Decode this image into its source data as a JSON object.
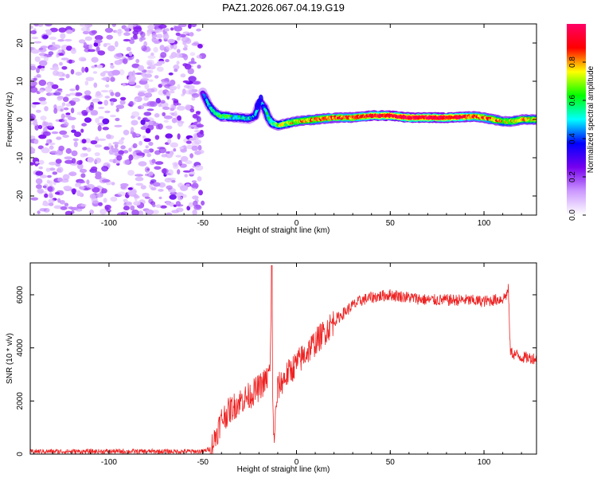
{
  "title": "PAZ1.2026.067.04.19.G19",
  "chart_data": [
    {
      "type": "heatmap",
      "name": "spectrogram",
      "xlabel": "Height of straight line (km)",
      "ylabel": "Frequency (Hz)",
      "xlim": [
        -142,
        128
      ],
      "ylim": [
        -25,
        25
      ],
      "xticks": [
        -100,
        -50,
        0,
        50,
        100
      ],
      "yticks": [
        -20,
        -10,
        0,
        10,
        20
      ],
      "colorbar": {
        "label": "Normalized spectral amplitude",
        "range": [
          0,
          1
        ],
        "ticks": [
          0.0,
          0.2,
          0.4,
          0.6,
          0.8
        ],
        "colors": [
          "#ffffff",
          "#cc99ff",
          "#7700ee",
          "#0000ff",
          "#00ffff",
          "#00ff00",
          "#ffff00",
          "#ff0000",
          "#ff0066"
        ]
      },
      "noise_region_x": [
        -142,
        -50
      ],
      "signal_ridge": {
        "x": [
          -50,
          -47,
          -45,
          -42,
          -40,
          -37,
          -35,
          -30,
          -25,
          -22,
          -20,
          -19,
          -17,
          -15,
          -13,
          -10,
          -5,
          0,
          10,
          20,
          30,
          40,
          50,
          60,
          70,
          80,
          90,
          95,
          100,
          105,
          110,
          115,
          120,
          128
        ],
        "freq_hz": [
          7,
          4,
          2.5,
          1.2,
          0.8,
          0.8,
          0.6,
          0.5,
          0.2,
          1.0,
          4.0,
          4.5,
          3.0,
          0.5,
          -1.0,
          -1.5,
          -1.0,
          -0.5,
          0.0,
          0.5,
          0.5,
          1.0,
          1.0,
          0.5,
          0.5,
          0.5,
          0.7,
          0.8,
          0.5,
          0.0,
          -0.5,
          -0.5,
          0.0,
          0.0
        ],
        "amplitude": [
          0.35,
          0.45,
          0.5,
          0.55,
          0.6,
          0.6,
          0.55,
          0.5,
          0.5,
          0.45,
          0.4,
          0.4,
          0.45,
          0.55,
          0.6,
          0.65,
          0.7,
          0.75,
          0.8,
          0.85,
          0.85,
          0.9,
          0.95,
          0.95,
          0.95,
          0.95,
          0.9,
          0.85,
          0.85,
          0.8,
          0.75,
          0.75,
          0.75,
          0.75
        ]
      }
    },
    {
      "type": "line",
      "name": "snr",
      "xlabel": "Height of straight line (km)",
      "ylabel": "SNR (10 * v/v)",
      "xlim": [
        -142,
        128
      ],
      "ylim": [
        0,
        7200
      ],
      "xticks": [
        -100,
        -50,
        0,
        50,
        100
      ],
      "yticks": [
        0,
        2000,
        4000,
        6000
      ],
      "color": "#ee2222",
      "envelope": {
        "x": [
          -142,
          -50,
          -46,
          -44,
          -42,
          -40,
          -35,
          -30,
          -25,
          -20,
          -16,
          -14,
          -13.2,
          -12.8,
          -12,
          -11,
          -10,
          -5,
          0,
          5,
          10,
          15,
          20,
          25,
          30,
          35,
          40,
          50,
          60,
          70,
          80,
          90,
          100,
          105,
          110,
          112,
          113,
          114,
          115,
          120,
          128
        ],
        "snr": [
          100,
          100,
          200,
          500,
          900,
          1300,
          1700,
          2000,
          2200,
          2500,
          2800,
          3200,
          7100,
          2000,
          600,
          1500,
          2500,
          3000,
          3400,
          3800,
          4200,
          4600,
          5000,
          5300,
          5600,
          5800,
          5900,
          6000,
          5900,
          5800,
          5800,
          5800,
          5750,
          5800,
          5850,
          6000,
          6200,
          3900,
          3800,
          3650,
          3600
        ]
      },
      "noise_amplitude": 150
    }
  ]
}
